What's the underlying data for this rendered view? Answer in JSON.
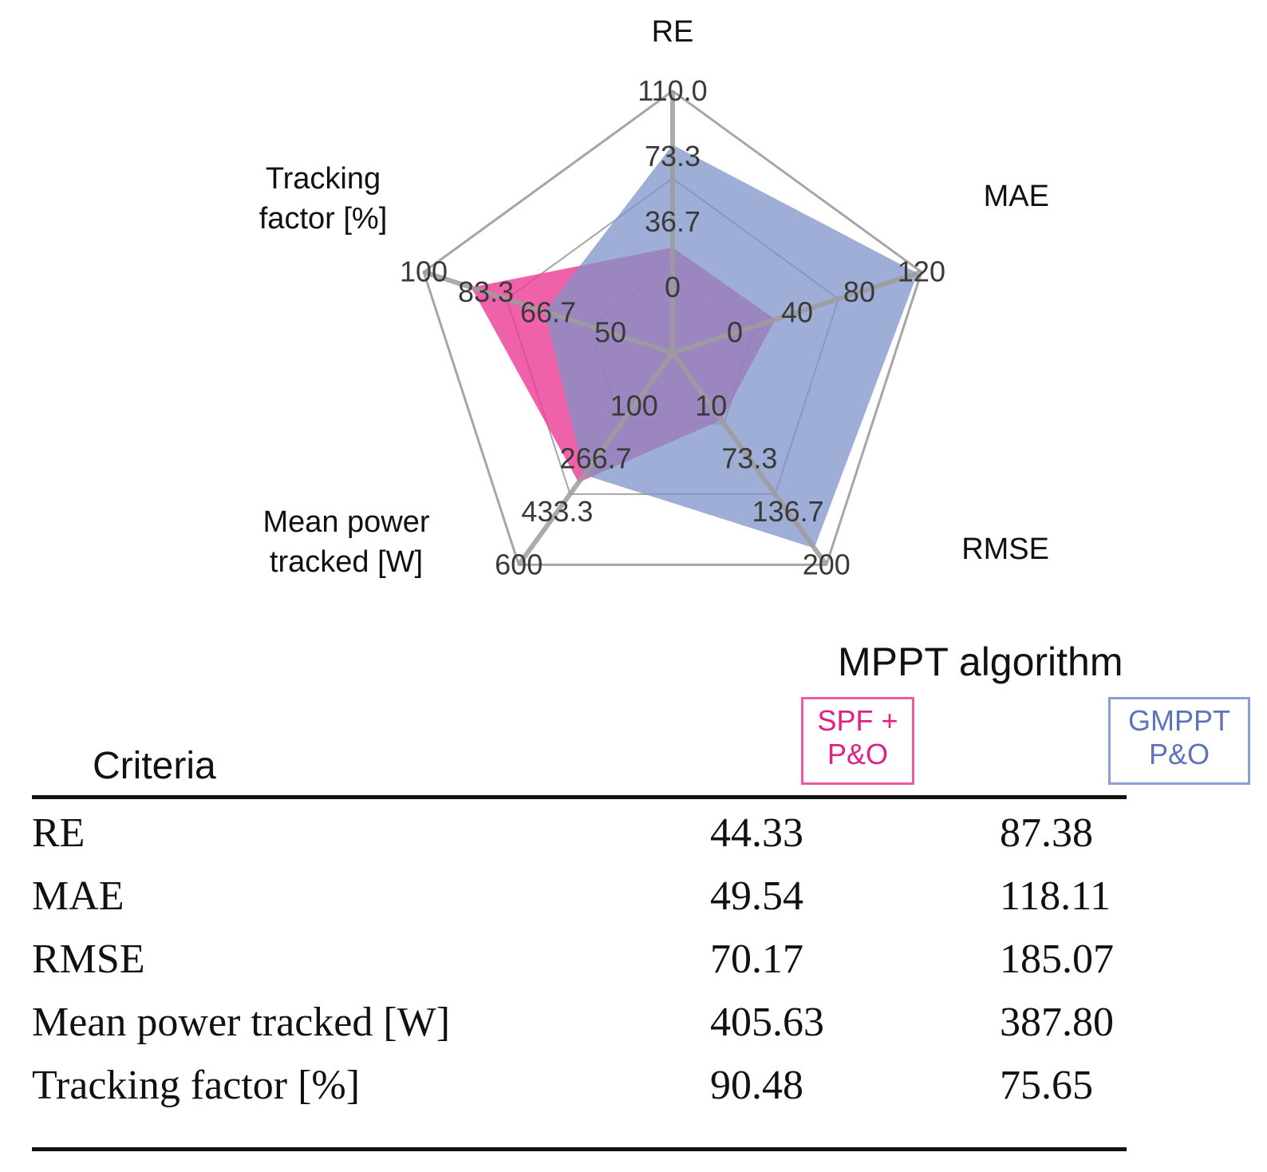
{
  "chart_data": {
    "type": "radar",
    "axes": [
      {
        "name": "RE",
        "ticks": [
          "0",
          "36.7",
          "73.3",
          "110.0"
        ],
        "min": 0,
        "max": 110
      },
      {
        "name": "MAE",
        "ticks": [
          "0",
          "40",
          "80",
          "120"
        ],
        "min": 0,
        "max": 120
      },
      {
        "name": "RMSE",
        "ticks": [
          "10",
          "73.3",
          "136.7",
          "200"
        ],
        "min": 10,
        "max": 200
      },
      {
        "name": "Mean power\ntracked [W]",
        "ticks": [
          "100",
          "266.7",
          "433.3",
          "600"
        ],
        "min": 100,
        "max": 600
      },
      {
        "name": "Tracking\nfactor [%]",
        "ticks": [
          "50",
          "66.7",
          "83.3",
          "100"
        ],
        "min": 50,
        "max": 100
      }
    ],
    "series": [
      {
        "name": "SPF +\nP&O",
        "color": "#ec3f96",
        "values": [
          44.33,
          49.54,
          70.17,
          405.63,
          90.48
        ]
      },
      {
        "name": "GMPPT\nP&O",
        "color": "#7f93c8",
        "values": [
          87.38,
          118.11,
          185.07,
          387.8,
          75.65
        ]
      }
    ],
    "legend_title": "MPPT algorithm",
    "grid": true
  },
  "legend": {
    "title": "MPPT algorithm",
    "spf_line1": "SPF +",
    "spf_line2": "P&O",
    "gmppt_line1": "GMPPT",
    "gmppt_line2": "P&O"
  },
  "table": {
    "header": "Criteria",
    "rows": [
      {
        "criterion": "RE",
        "spf": "44.33",
        "gmppt": "87.38"
      },
      {
        "criterion": "MAE",
        "spf": "49.54",
        "gmppt": "118.11"
      },
      {
        "criterion": "RMSE",
        "spf": "70.17",
        "gmppt": "185.07"
      },
      {
        "criterion": "Mean power tracked [W]",
        "spf": "405.63",
        "gmppt": "387.80"
      },
      {
        "criterion": "Tracking factor [%]",
        "spf": "90.48",
        "gmppt": "75.65"
      }
    ]
  }
}
